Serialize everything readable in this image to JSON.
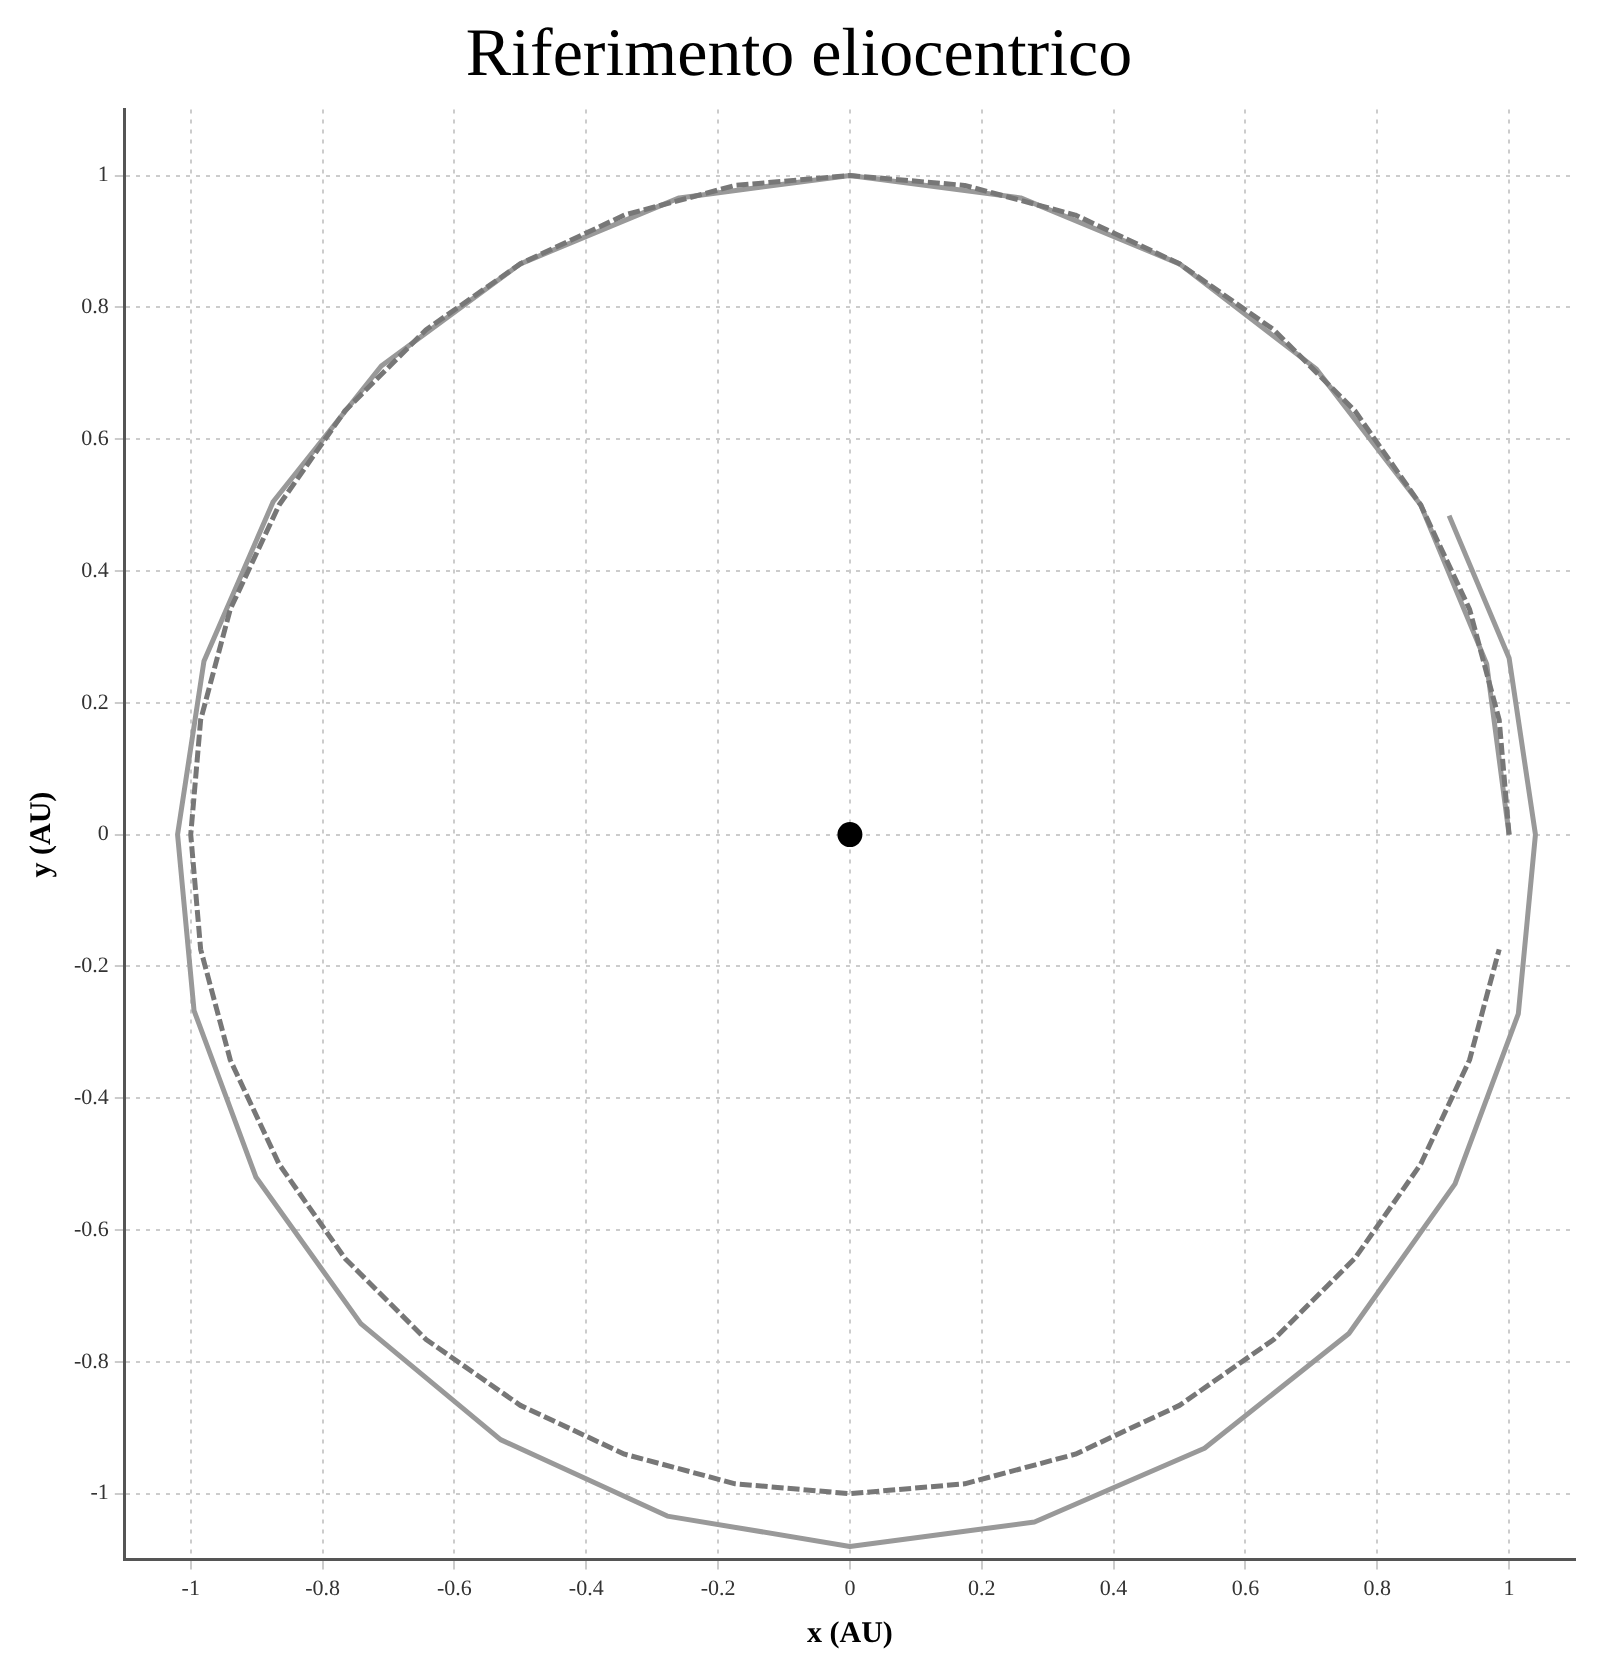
{
  "chart_data": {
    "type": "line",
    "title": "Riferimento eliocentrico",
    "xlabel": "x (AU)",
    "ylabel": "y (AU)",
    "xlim": [
      -1.1,
      1.1
    ],
    "ylim": [
      -1.1,
      1.1
    ],
    "xticks": [
      -1,
      -0.8,
      -0.6,
      -0.4,
      -0.2,
      0,
      0.2,
      0.4,
      0.6,
      0.8,
      1
    ],
    "yticks": [
      -1,
      -0.8,
      -0.6,
      -0.4,
      -0.2,
      0,
      0.2,
      0.4,
      0.6,
      0.8,
      1
    ],
    "grid": true,
    "series": [
      {
        "color": "#999999",
        "line_style": "solid",
        "marker": "none",
        "x": [
          1.0,
          0.966,
          0.866,
          0.707,
          0.5,
          0.259,
          0.0,
          -0.259,
          -0.5,
          -0.711,
          -0.875,
          -0.98,
          -1.02,
          -0.995,
          -0.901,
          -0.742,
          -0.53,
          -0.277,
          0.0,
          0.28,
          0.538,
          0.757,
          0.918,
          1.014,
          1.04,
          1.0,
          0.909
        ],
        "values": [
          0.0,
          0.259,
          0.5,
          0.707,
          0.866,
          0.966,
          1.0,
          0.966,
          0.866,
          0.711,
          0.505,
          0.263,
          0.0,
          -0.267,
          -0.52,
          -0.742,
          -0.918,
          -1.034,
          -1.08,
          -1.043,
          -0.931,
          -0.757,
          -0.53,
          -0.272,
          0.0,
          0.268,
          0.484
        ]
      },
      {
        "color": "#777777",
        "line_style": "dashed",
        "marker": "none",
        "x": [
          1.0,
          0.985,
          0.94,
          0.866,
          0.766,
          0.643,
          0.5,
          0.342,
          0.174,
          0.0,
          -0.174,
          -0.342,
          -0.5,
          -0.643,
          -0.766,
          -0.866,
          -0.94,
          -0.985,
          -1.0,
          -0.985,
          -0.94,
          -0.866,
          -0.766,
          -0.643,
          -0.5,
          -0.342,
          -0.174,
          0.0,
          0.174,
          0.342,
          0.5,
          0.643,
          0.766,
          0.866,
          0.94,
          0.985
        ],
        "values": [
          0.0,
          0.174,
          0.342,
          0.5,
          0.643,
          0.766,
          0.866,
          0.94,
          0.985,
          1.0,
          0.985,
          0.94,
          0.866,
          0.766,
          0.643,
          0.5,
          0.342,
          0.174,
          0.0,
          -0.174,
          -0.342,
          -0.5,
          -0.643,
          -0.766,
          -0.866,
          -0.94,
          -0.985,
          -1.0,
          -0.985,
          -0.94,
          -0.866,
          -0.766,
          -0.643,
          -0.5,
          -0.342,
          -0.174
        ]
      },
      {
        "type": "scatter",
        "color": "#000000",
        "marker": "circle",
        "x": [
          0
        ],
        "values": [
          0
        ]
      }
    ]
  }
}
